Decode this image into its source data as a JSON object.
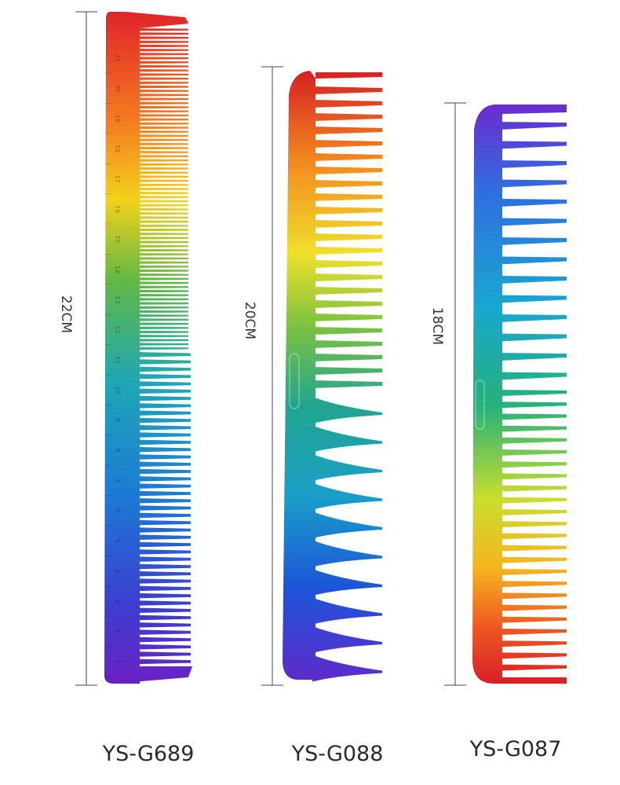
{
  "combs": [
    {
      "model": "YS-G689",
      "length": "22CM",
      "ruler": [
        "1",
        "2",
        "3",
        "4",
        "5",
        "6",
        "7",
        "8",
        "9",
        "10",
        "11",
        "12",
        "13",
        "14",
        "15",
        "16",
        "17",
        "18",
        "19",
        "20",
        "21"
      ]
    },
    {
      "model": "YS-G088",
      "length": "20CM"
    },
    {
      "model": "YS-G087",
      "length": "18CM"
    }
  ]
}
